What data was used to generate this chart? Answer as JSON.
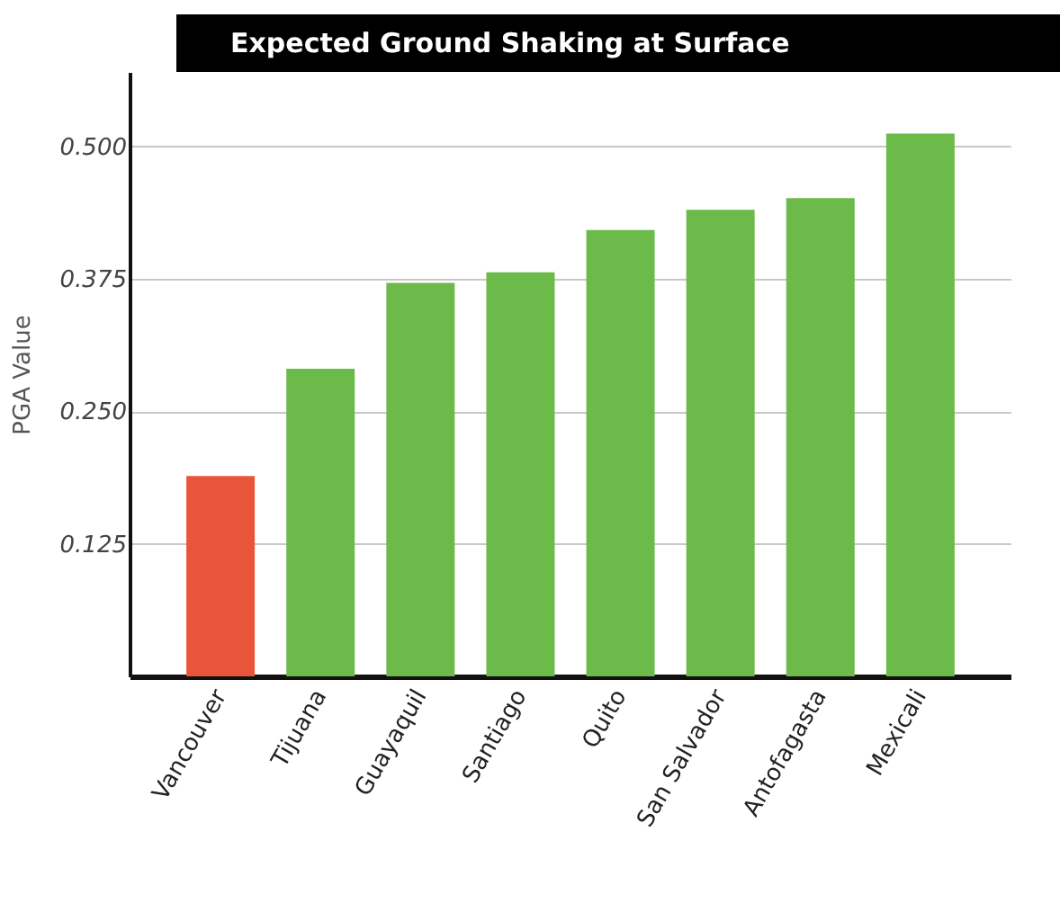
{
  "chart_data": {
    "type": "bar",
    "title": "Expected Ground Shaking at Surface",
    "ylabel": "PGA Value",
    "categories": [
      "Vancouver",
      "Tijuana",
      "Guayaquil",
      "Santiago",
      "Quito",
      "San Salvador",
      "Antofagasta",
      "Mexicali"
    ],
    "values": [
      0.189,
      0.29,
      0.371,
      0.381,
      0.421,
      0.44,
      0.451,
      0.512
    ],
    "colors": [
      "#e8553a",
      "#6cbb4a",
      "#6cbb4a",
      "#6cbb4a",
      "#6cbb4a",
      "#6cbb4a",
      "#6cbb4a",
      "#6cbb4a"
    ],
    "ylim": [
      0,
      0.57
    ],
    "yticks": [
      0.125,
      {
        "value": 0.25,
        "label": "0.250"
      },
      0.375,
      {
        "value": 0.5,
        "label": "0.500"
      }
    ],
    "grid": "y"
  }
}
